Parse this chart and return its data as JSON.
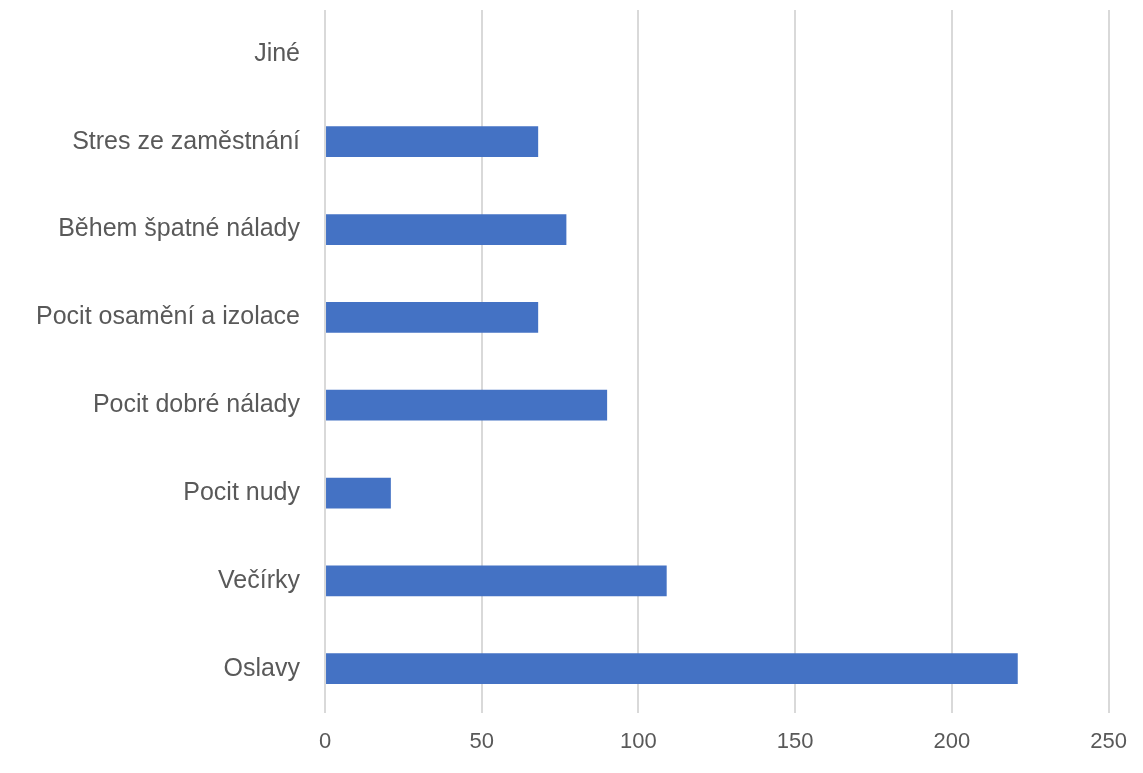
{
  "chart_data": {
    "type": "bar",
    "orientation": "horizontal",
    "categories": [
      "Jiné",
      "Stres ze zaměstnání",
      "Během špatné nálady",
      "Pocit osamění a izolace",
      "Pocit dobré nálady",
      "Pocit nudy",
      "Večírky",
      "Oslavy"
    ],
    "values": [
      0,
      68,
      77,
      68,
      90,
      21,
      109,
      221
    ],
    "color": "#4472c4",
    "xlim": [
      0,
      250
    ],
    "xticks": [
      0,
      50,
      100,
      150,
      200,
      250
    ],
    "grid": "x"
  }
}
